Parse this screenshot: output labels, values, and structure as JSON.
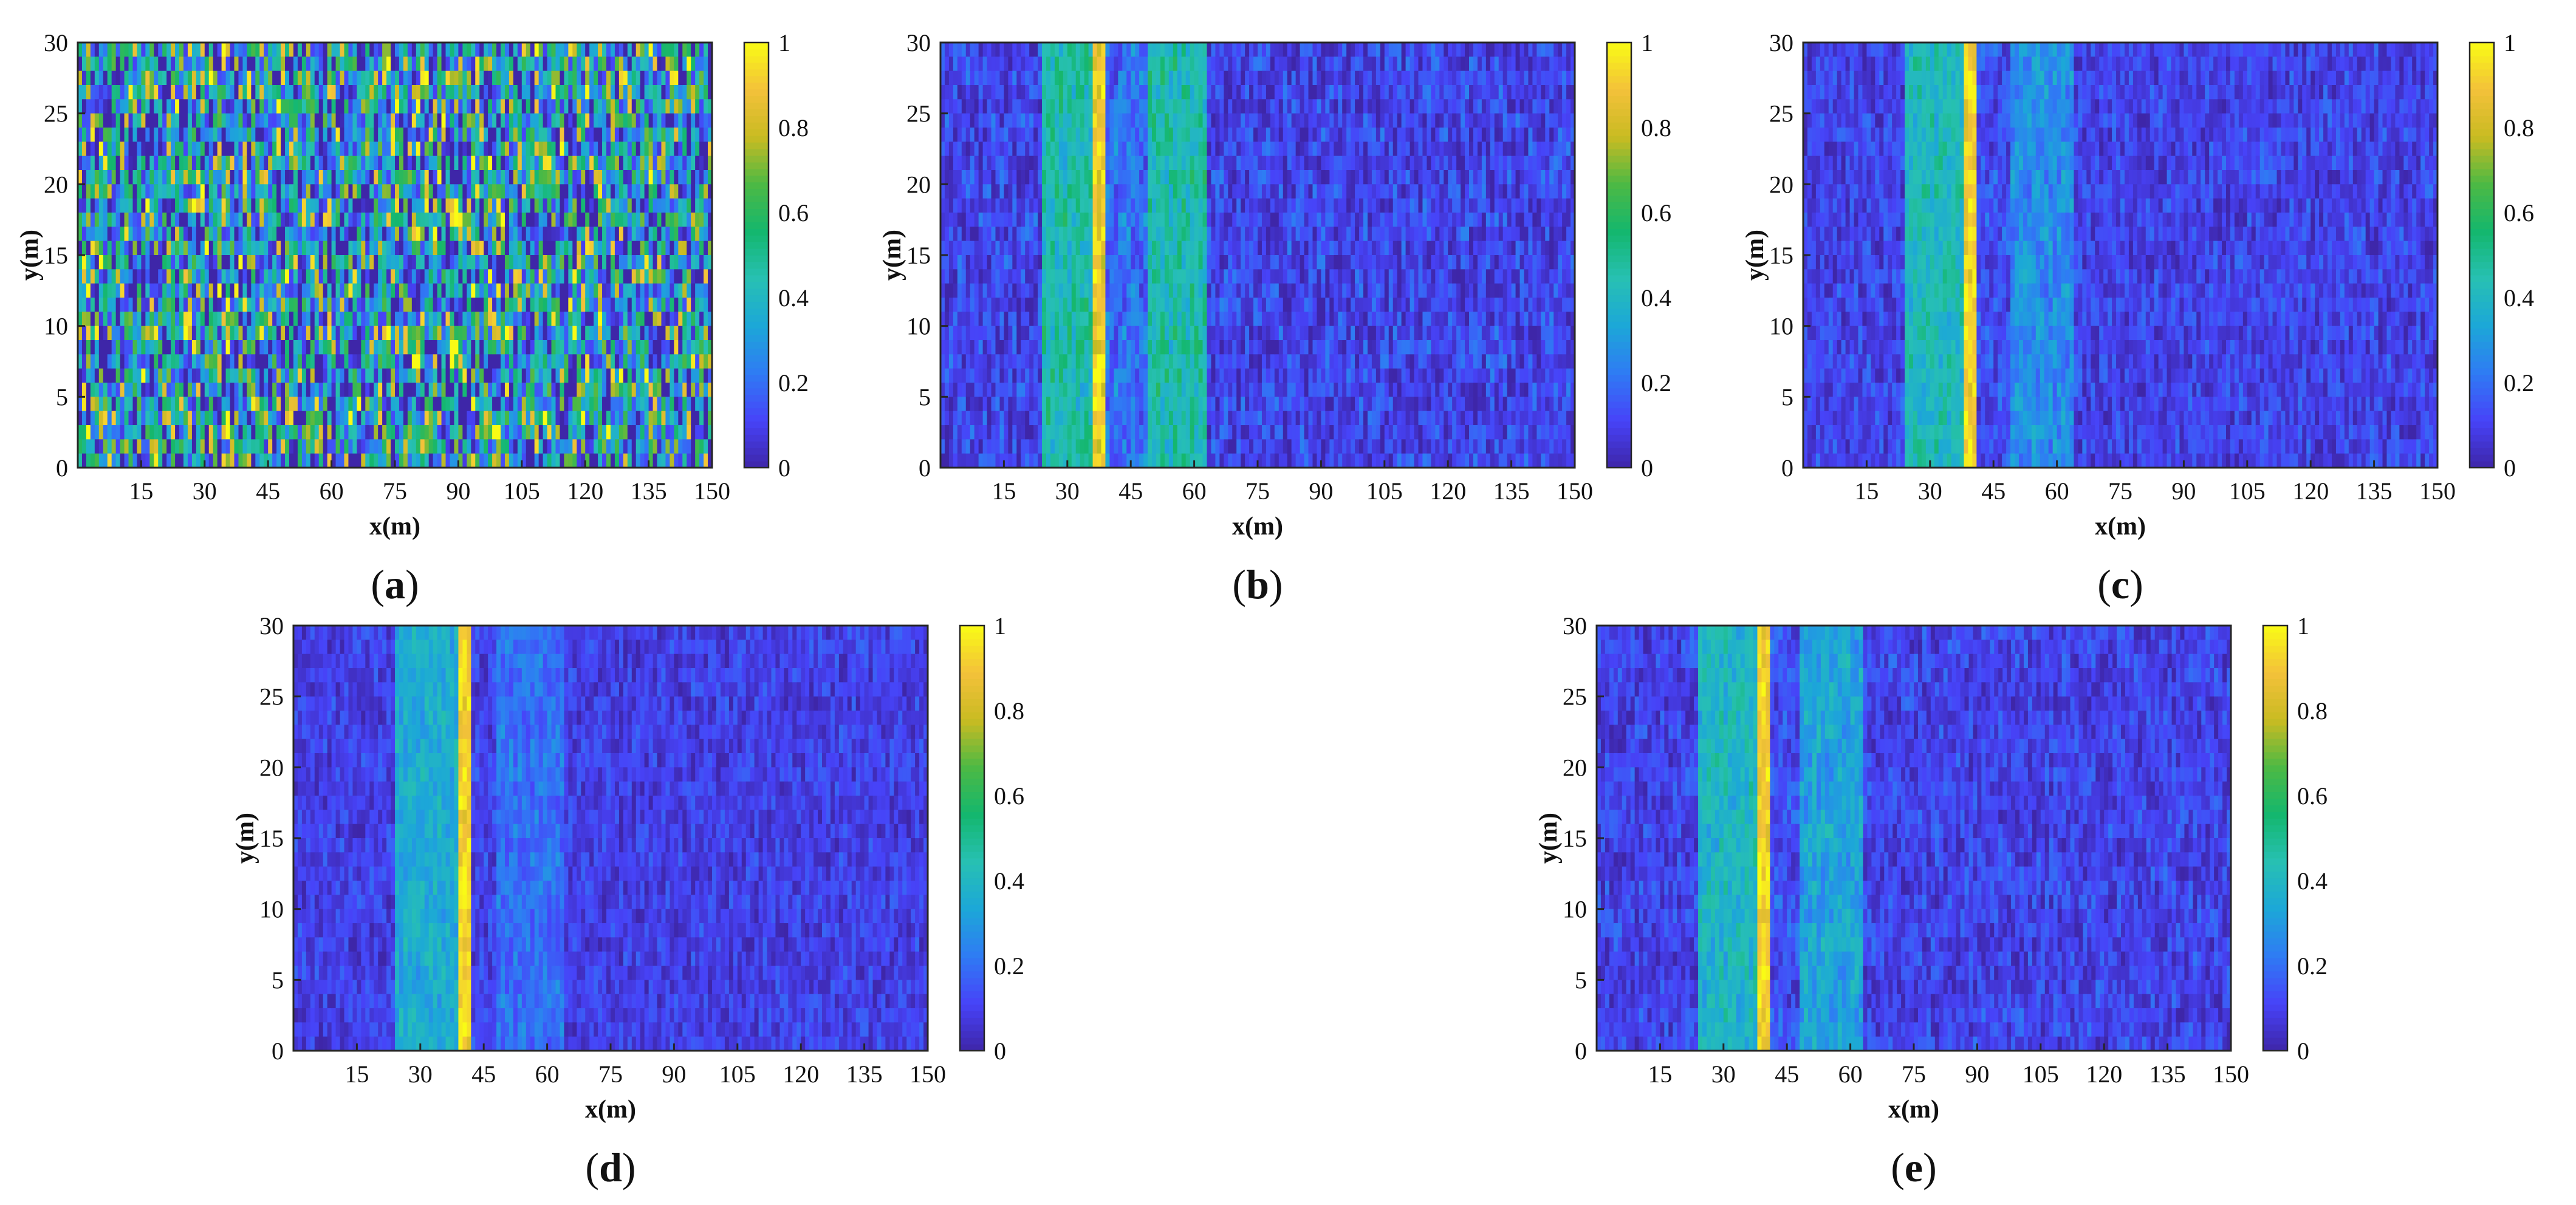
{
  "colormap": [
    "#3e26a8",
    "#4743f8",
    "#2f7bf4",
    "#1ca7d8",
    "#27c0b3",
    "#14b76e",
    "#4cb944",
    "#c9bb22",
    "#f3c13a",
    "#f9fb15"
  ],
  "chart_data": [
    {
      "panel": "a",
      "caption_open": "(",
      "caption_letter": "a",
      "caption_close": ")",
      "type": "heatmap",
      "title": "",
      "xlabel": "x(m)",
      "ylabel": "y(m)",
      "xlim": [
        0,
        150
      ],
      "ylim": [
        0,
        30
      ],
      "xticks": [
        "15",
        "30",
        "45",
        "60",
        "75",
        "90",
        "105",
        "120",
        "135",
        "150"
      ],
      "yticks": [
        "0",
        "5",
        "10",
        "15",
        "20",
        "25",
        "30"
      ],
      "colorbar": {
        "range": [
          0,
          1
        ],
        "ticks": [
          "0",
          "0.2",
          "0.4",
          "0.6",
          "0.8",
          "1"
        ]
      },
      "field": {
        "background": 0.32,
        "noise": 0.45,
        "bands": []
      }
    },
    {
      "panel": "b",
      "caption_open": "(",
      "caption_letter": "b",
      "caption_close": ")",
      "type": "heatmap",
      "title": "",
      "xlabel": "x(m)",
      "ylabel": "y(m)",
      "xlim": [
        0,
        150
      ],
      "ylim": [
        0,
        30
      ],
      "xticks": [
        "15",
        "30",
        "45",
        "60",
        "75",
        "90",
        "105",
        "120",
        "135",
        "150"
      ],
      "yticks": [
        "0",
        "5",
        "10",
        "15",
        "20",
        "25",
        "30"
      ],
      "colorbar": {
        "range": [
          0,
          1
        ],
        "ticks": [
          "0",
          "0.2",
          "0.4",
          "0.6",
          "0.8",
          "1"
        ]
      },
      "field": {
        "background": 0.1,
        "noise": 0.1,
        "bands": [
          {
            "x0": 24,
            "x1": 36,
            "level": 0.45
          },
          {
            "x0": 36,
            "x1": 39,
            "level": 0.9
          },
          {
            "x0": 39,
            "x1": 49,
            "level": 0.2
          },
          {
            "x0": 49,
            "x1": 63,
            "level": 0.45
          }
        ]
      }
    },
    {
      "panel": "c",
      "caption_open": "(",
      "caption_letter": "c",
      "caption_close": ")",
      "type": "heatmap",
      "title": "",
      "xlabel": "x(m)",
      "ylabel": "y(m)",
      "xlim": [
        0,
        150
      ],
      "ylim": [
        0,
        30
      ],
      "xticks": [
        "15",
        "30",
        "45",
        "60",
        "75",
        "90",
        "105",
        "120",
        "135",
        "150"
      ],
      "yticks": [
        "0",
        "5",
        "10",
        "15",
        "20",
        "25",
        "30"
      ],
      "colorbar": {
        "range": [
          0,
          1
        ],
        "ticks": [
          "0",
          "0.2",
          "0.4",
          "0.6",
          "0.8",
          "1"
        ]
      },
      "field": {
        "background": 0.1,
        "noise": 0.08,
        "bands": [
          {
            "x0": 24,
            "x1": 38,
            "level": 0.42
          },
          {
            "x0": 38,
            "x1": 41,
            "level": 0.92
          },
          {
            "x0": 41,
            "x1": 49,
            "level": 0.13
          },
          {
            "x0": 49,
            "x1": 64,
            "level": 0.27
          }
        ]
      }
    },
    {
      "panel": "d",
      "caption_open": "(",
      "caption_letter": "d",
      "caption_close": ")",
      "type": "heatmap",
      "title": "",
      "xlabel": "x(m)",
      "ylabel": "y(m)",
      "xlim": [
        0,
        150
      ],
      "ylim": [
        0,
        30
      ],
      "xticks": [
        "15",
        "30",
        "45",
        "60",
        "75",
        "90",
        "105",
        "120",
        "135",
        "150"
      ],
      "yticks": [
        "0",
        "5",
        "10",
        "15",
        "20",
        "25",
        "30"
      ],
      "colorbar": {
        "range": [
          0,
          1
        ],
        "ticks": [
          "0",
          "0.2",
          "0.4",
          "0.6",
          "0.8",
          "1"
        ]
      },
      "field": {
        "background": 0.09,
        "noise": 0.07,
        "bands": [
          {
            "x0": 24,
            "x1": 39,
            "level": 0.36
          },
          {
            "x0": 39,
            "x1": 42,
            "level": 0.92
          },
          {
            "x0": 42,
            "x1": 48,
            "level": 0.1
          },
          {
            "x0": 48,
            "x1": 64,
            "level": 0.2
          }
        ]
      }
    },
    {
      "panel": "e",
      "caption_open": "(",
      "caption_letter": "e",
      "caption_close": ")",
      "type": "heatmap",
      "title": "",
      "xlabel": "x(m)",
      "ylabel": "y(m)",
      "xlim": [
        0,
        150
      ],
      "ylim": [
        0,
        30
      ],
      "xticks": [
        "15",
        "30",
        "45",
        "60",
        "75",
        "90",
        "105",
        "120",
        "135",
        "150"
      ],
      "yticks": [
        "0",
        "5",
        "10",
        "15",
        "20",
        "25",
        "30"
      ],
      "colorbar": {
        "range": [
          0,
          1
        ],
        "ticks": [
          "0",
          "0.2",
          "0.4",
          "0.6",
          "0.8",
          "1"
        ]
      },
      "field": {
        "background": 0.1,
        "noise": 0.08,
        "bands": [
          {
            "x0": 24,
            "x1": 38,
            "level": 0.4
          },
          {
            "x0": 38,
            "x1": 41,
            "level": 0.92
          },
          {
            "x0": 41,
            "x1": 48,
            "level": 0.13
          },
          {
            "x0": 48,
            "x1": 63,
            "level": 0.33
          }
        ]
      }
    }
  ]
}
